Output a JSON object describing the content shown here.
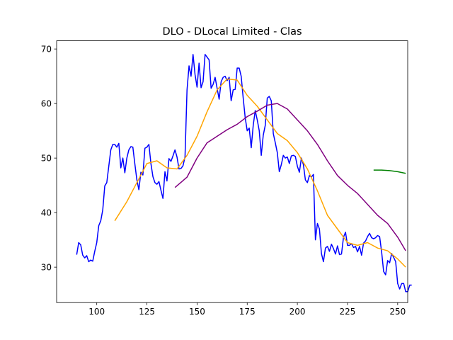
{
  "chart_data": {
    "type": "line",
    "title": "DLO - DLocal Limited - Clas",
    "xlabel": "",
    "ylabel": "",
    "xlim": [
      80,
      255
    ],
    "ylim": [
      23.5,
      71.5
    ],
    "xticks": [
      100,
      125,
      150,
      175,
      200,
      225,
      250
    ],
    "yticks": [
      30,
      40,
      50,
      60,
      70
    ],
    "grid": false,
    "series": [
      {
        "color": "#0000ff",
        "x_start": 90,
        "values": [
          32.3,
          34.5,
          34.1,
          32.2,
          31.7,
          32.1,
          31.0,
          31.3,
          31.1,
          32.9,
          34.5,
          37.6,
          38.5,
          40.5,
          44.9,
          45.5,
          48.5,
          51.5,
          52.5,
          52.5,
          52.0,
          52.7,
          48.2,
          50.0,
          47.3,
          50.0,
          51.5,
          52.1,
          52.0,
          48.9,
          46.0,
          44.2,
          47.4,
          46.9,
          51.8,
          52.0,
          52.5,
          49.0,
          46.6,
          45.5,
          45.2,
          45.7,
          44.1,
          42.6,
          47.5,
          45.8,
          49.9,
          49.4,
          50.4,
          51.5,
          50.2,
          48.0,
          48.1,
          48.6,
          50.2,
          62.5,
          66.9,
          65.0,
          69.0,
          65.3,
          63.0,
          67.4,
          62.9,
          64.0,
          69.0,
          68.5,
          68.0,
          62.8,
          63.5,
          64.8,
          62.8,
          60.8,
          64.0,
          64.8,
          65.0,
          64.2,
          64.8,
          60.5,
          62.5,
          62.6,
          66.5,
          66.5,
          65.0,
          61.0,
          57.4,
          55.0,
          55.5,
          51.9,
          56.0,
          58.7,
          57.0,
          55.0,
          50.5,
          54.2,
          56.0,
          61.0,
          61.3,
          60.5,
          54.5,
          52.8,
          51.0,
          47.5,
          48.8,
          50.5,
          50.0,
          50.2,
          49.0,
          50.4,
          50.5,
          50.3,
          48.5,
          47.4,
          50.0,
          48.8,
          46.0,
          45.5,
          46.8,
          46.5,
          47.0,
          35.0,
          38.0,
          37.0,
          32.5,
          31.0,
          33.5,
          33.8,
          32.9,
          34.2,
          33.4,
          32.4,
          33.9,
          32.3,
          32.4,
          35.5,
          36.4,
          34.0,
          34.0,
          34.3,
          33.6,
          33.8,
          32.8,
          33.8,
          32.2,
          34.4,
          34.8,
          35.6,
          36.2,
          35.4,
          35.2,
          35.4,
          35.8,
          35.6,
          32.8,
          29.2,
          28.6,
          31.2,
          30.8,
          32.5,
          31.8,
          31.0,
          27.0,
          26.0,
          27.0,
          27.0,
          25.5,
          25.5,
          26.7,
          26.7
        ]
      },
      {
        "color": "#ffa500",
        "x": [
          109,
          115,
          120,
          125,
          130,
          135,
          140,
          145,
          150,
          155,
          160,
          165,
          170,
          175,
          180,
          185,
          190,
          195,
          200,
          205,
          210,
          215,
          220,
          225,
          230,
          235,
          240,
          245,
          250,
          254
        ],
        "values": [
          38.5,
          42.0,
          45.5,
          49.0,
          49.5,
          48.2,
          48.0,
          50.5,
          54.0,
          58.5,
          62.5,
          64.5,
          64.3,
          61.5,
          59.5,
          57.0,
          54.5,
          53.2,
          51.0,
          48.0,
          44.0,
          39.5,
          37.0,
          34.5,
          34.0,
          34.5,
          33.5,
          33.0,
          31.5,
          30.0
        ]
      },
      {
        "color": "#800080",
        "x": [
          139,
          145,
          150,
          155,
          160,
          165,
          170,
          175,
          180,
          185,
          190,
          195,
          200,
          205,
          210,
          215,
          220,
          225,
          230,
          235,
          240,
          245,
          250,
          254
        ],
        "values": [
          44.6,
          46.5,
          50.0,
          52.8,
          54.0,
          55.2,
          56.2,
          57.6,
          58.6,
          59.7,
          60.0,
          59.0,
          57.0,
          55.0,
          52.5,
          49.5,
          46.8,
          45.0,
          43.5,
          41.5,
          39.5,
          38.0,
          35.5,
          33.0
        ]
      },
      {
        "color": "#008000",
        "x": [
          238,
          242,
          246,
          250,
          254
        ],
        "values": [
          47.8,
          47.8,
          47.7,
          47.5,
          47.2
        ]
      }
    ]
  }
}
